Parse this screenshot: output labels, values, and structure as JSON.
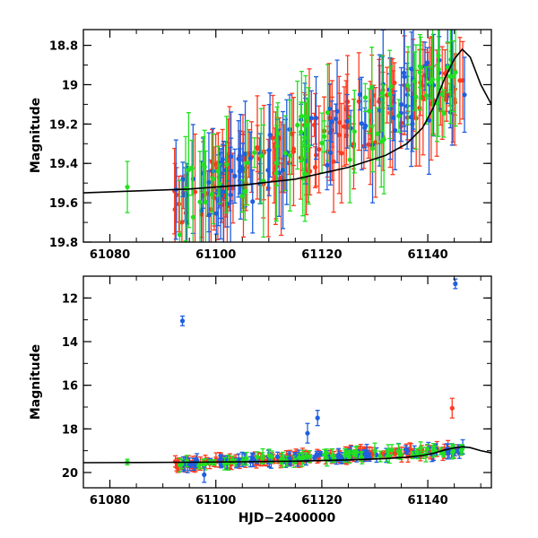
{
  "chart_data": [
    {
      "type": "scatter",
      "title": "",
      "xlabel": "",
      "ylabel": "Magnitude",
      "xlim": [
        61075,
        61152
      ],
      "ylim": [
        19.8,
        18.72
      ],
      "y_inverted": true,
      "grid": false,
      "xticks": [
        61080,
        61100,
        61120,
        61140
      ],
      "yticks": [
        18.8,
        19,
        19.2,
        19.4,
        19.6,
        19.8
      ],
      "series": [
        {
          "color": "#ff3b1f",
          "band": "red",
          "x_range": [
            61092.0,
            61147.0
          ],
          "trend_start": 19.62,
          "trend_end": 18.95,
          "scatter": 0.14,
          "err_range": [
            0.05,
            0.3
          ]
        },
        {
          "color": "#1f5fe0",
          "band": "blue",
          "x_range": [
            61092.0,
            61147.0
          ],
          "trend_start": 19.62,
          "trend_end": 18.95,
          "scatter": 0.16,
          "err_range": [
            0.07,
            0.3
          ]
        },
        {
          "color": "#22e022",
          "band": "green",
          "x_range": [
            61092.0,
            61147.0
          ],
          "trend_start": 19.62,
          "trend_end": 18.95,
          "scatter": 0.17,
          "err_range": [
            0.07,
            0.3
          ]
        }
      ],
      "isolated_points": [
        {
          "x": 61083.3,
          "y": 19.52,
          "err": 0.13,
          "color": "#22e022"
        }
      ],
      "model_curve": [
        [
          61075,
          19.55
        ],
        [
          61085,
          19.54
        ],
        [
          61095,
          19.53
        ],
        [
          61105,
          19.51
        ],
        [
          61115,
          19.48
        ],
        [
          61125,
          19.42
        ],
        [
          61132,
          19.36
        ],
        [
          61136,
          19.3
        ],
        [
          61139,
          19.22
        ],
        [
          61141,
          19.12
        ],
        [
          61143,
          18.98
        ],
        [
          61145,
          18.87
        ],
        [
          61146.5,
          18.82
        ],
        [
          61148,
          18.86
        ],
        [
          61150,
          19.0
        ],
        [
          61152,
          19.1
        ]
      ]
    },
    {
      "type": "scatter",
      "title": "",
      "xlabel": "HJD−2400000",
      "ylabel": "Magnitude",
      "xlim": [
        61075,
        61152
      ],
      "ylim": [
        20.7,
        11.0
      ],
      "y_inverted": true,
      "grid": false,
      "xticks": [
        61080,
        61100,
        61120,
        61140
      ],
      "yticks": [
        12,
        14,
        16,
        18,
        20
      ],
      "series": [
        {
          "color": "#ff3b1f",
          "band": "red",
          "x_range": [
            61092.0,
            61147.0
          ],
          "trend_start": 19.62,
          "trend_end": 18.95,
          "scatter": 0.14,
          "err_range": [
            0.1,
            0.35
          ]
        },
        {
          "color": "#1f5fe0",
          "band": "blue",
          "x_range": [
            61092.0,
            61147.0
          ],
          "trend_start": 19.62,
          "trend_end": 18.95,
          "scatter": 0.16,
          "err_range": [
            0.1,
            0.35
          ]
        },
        {
          "color": "#22e022",
          "band": "green",
          "x_range": [
            61092.0,
            61147.0
          ],
          "trend_start": 19.62,
          "trend_end": 18.95,
          "scatter": 0.18,
          "err_range": [
            0.1,
            0.35
          ]
        }
      ],
      "isolated_points": [
        {
          "x": 61083.3,
          "y": 19.52,
          "err": 0.13,
          "color": "#22e022"
        },
        {
          "x": 61093.7,
          "y": 13.05,
          "err": 0.22,
          "color": "#1f5fe0"
        },
        {
          "x": 61117.3,
          "y": 18.2,
          "err": 0.45,
          "color": "#1f5fe0"
        },
        {
          "x": 61119.2,
          "y": 17.5,
          "err": 0.35,
          "color": "#1f5fe0"
        },
        {
          "x": 61097.8,
          "y": 20.1,
          "err": 0.35,
          "color": "#1f5fe0"
        },
        {
          "x": 61145.2,
          "y": 11.35,
          "err": 0.22,
          "color": "#1f5fe0"
        },
        {
          "x": 61144.6,
          "y": 17.05,
          "err": 0.45,
          "color": "#ff3b1f"
        }
      ],
      "model_curve": [
        [
          61075,
          19.55
        ],
        [
          61085,
          19.54
        ],
        [
          61095,
          19.53
        ],
        [
          61105,
          19.51
        ],
        [
          61115,
          19.48
        ],
        [
          61125,
          19.42
        ],
        [
          61132,
          19.36
        ],
        [
          61136,
          19.3
        ],
        [
          61139,
          19.22
        ],
        [
          61141,
          19.12
        ],
        [
          61143,
          18.98
        ],
        [
          61145,
          18.87
        ],
        [
          61146.5,
          18.82
        ],
        [
          61148,
          18.86
        ],
        [
          61150,
          19.0
        ],
        [
          61152,
          19.1
        ]
      ]
    }
  ]
}
